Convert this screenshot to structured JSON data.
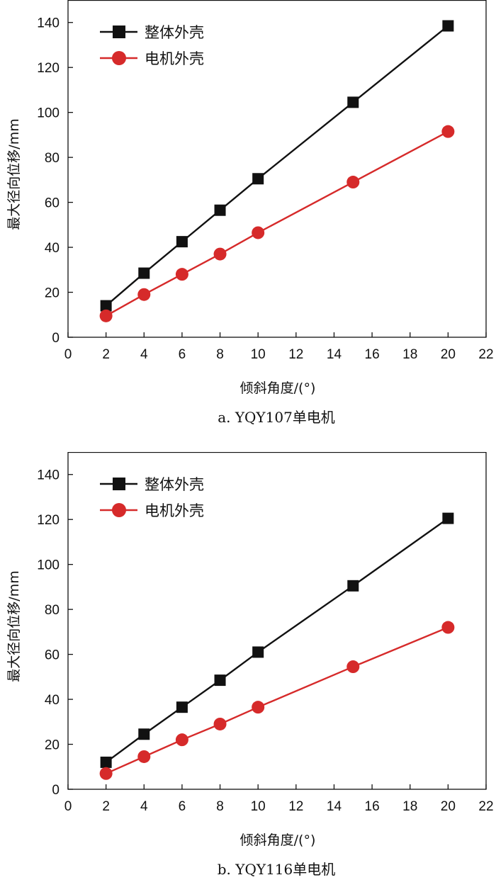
{
  "chart_data": [
    {
      "type": "line",
      "caption": "a. YQY107单电机",
      "xlabel": "倾斜角度/(°)",
      "ylabel": "最大径向位移/mm",
      "xlim": [
        0,
        22
      ],
      "ylim": [
        0,
        150
      ],
      "xticks": [
        0,
        2,
        4,
        6,
        8,
        10,
        12,
        14,
        16,
        18,
        20,
        22
      ],
      "yticks": [
        0,
        20,
        40,
        60,
        80,
        100,
        120,
        140
      ],
      "grid": false,
      "legend_position": "top-left",
      "x": [
        2,
        4,
        6,
        8,
        10,
        15,
        20
      ],
      "series": [
        {
          "name": "整体外壳",
          "color": "#111111",
          "marker": "square",
          "values": [
            14,
            28.5,
            42.5,
            56.5,
            70.5,
            104.5,
            138.5
          ]
        },
        {
          "name": "电机外壳",
          "color": "#d62a2a",
          "marker": "circle",
          "values": [
            9.5,
            19,
            28,
            37,
            46.5,
            69,
            91.5
          ]
        }
      ]
    },
    {
      "type": "line",
      "caption": "b. YQY116单电机",
      "xlabel": "倾斜角度/(°)",
      "ylabel": "最大径向位移/mm",
      "xlim": [
        0,
        22
      ],
      "ylim": [
        0,
        150
      ],
      "xticks": [
        0,
        2,
        4,
        6,
        8,
        10,
        12,
        14,
        16,
        18,
        20,
        22
      ],
      "yticks": [
        0,
        20,
        40,
        60,
        80,
        100,
        120,
        140
      ],
      "grid": false,
      "legend_position": "top-left",
      "x": [
        2,
        4,
        6,
        8,
        10,
        15,
        20
      ],
      "series": [
        {
          "name": "整体外壳",
          "color": "#111111",
          "marker": "square",
          "values": [
            12,
            24.5,
            36.5,
            48.5,
            61,
            90.5,
            120.5
          ]
        },
        {
          "name": "电机外壳",
          "color": "#d62a2a",
          "marker": "circle",
          "values": [
            7,
            14.5,
            22,
            29,
            36.5,
            54.5,
            72
          ]
        }
      ]
    }
  ]
}
